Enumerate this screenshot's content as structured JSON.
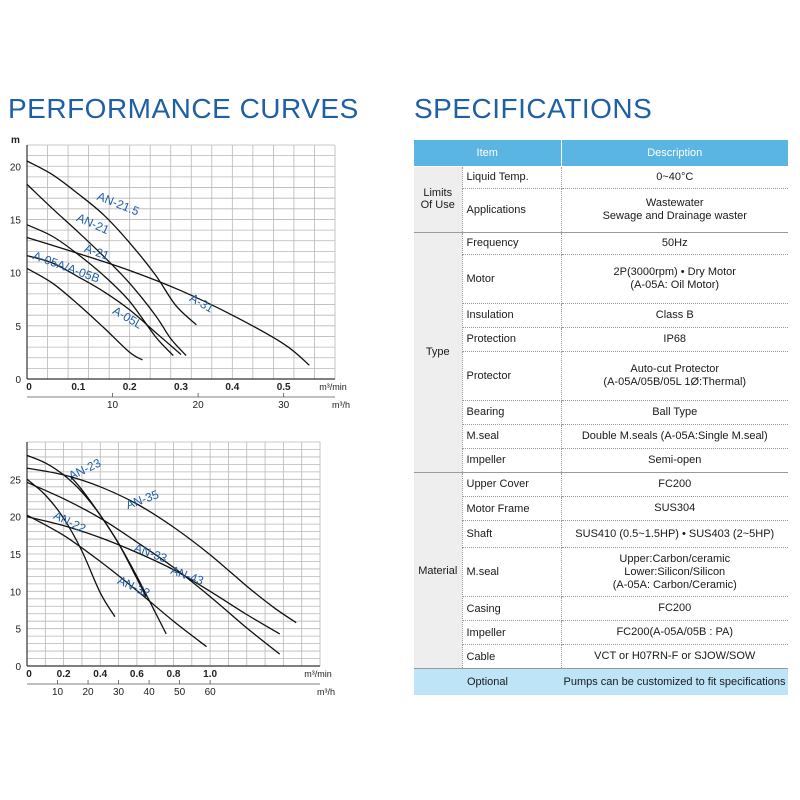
{
  "left_title": "PERFORMANCE CURVES",
  "right_title": "SPECIFICATIONS",
  "chart_data": [
    {
      "type": "line",
      "title": "",
      "ylabel": "m",
      "xlabel": "m³/min",
      "x2label": "m³/h",
      "xlim": [
        0,
        0.6
      ],
      "ylim": [
        0,
        22
      ],
      "x2lim": [
        0,
        36
      ],
      "xticks": [
        0,
        0.1,
        0.2,
        0.3,
        0.4,
        0.5
      ],
      "xtick_labels": [
        "0",
        "0.1",
        "0.2",
        "0.3",
        "0.4",
        "0.5"
      ],
      "x2ticks": [
        10,
        20,
        30
      ],
      "yticks": [
        0,
        5,
        10,
        15,
        20
      ],
      "series": [
        {
          "name": "AN-21.5",
          "label_at": [
            0.135,
            16.9
          ],
          "label_angle": 22,
          "x": [
            0,
            0.05,
            0.1,
            0.15,
            0.2,
            0.25,
            0.29,
            0.33
          ],
          "y": [
            20.5,
            19.2,
            17.4,
            15.4,
            12.8,
            9.8,
            6.9,
            5.1
          ]
        },
        {
          "name": "AN-21",
          "label_at": [
            0.095,
            14.9
          ],
          "label_angle": 24,
          "x": [
            0,
            0.05,
            0.1,
            0.15,
            0.2,
            0.25,
            0.28,
            0.31
          ],
          "y": [
            18.3,
            16.0,
            13.8,
            11.5,
            9.0,
            6.0,
            3.8,
            2.2
          ]
        },
        {
          "name": "A-21",
          "label_at": [
            0.11,
            12.0
          ],
          "label_angle": 20,
          "x": [
            0,
            0.05,
            0.1,
            0.15,
            0.2,
            0.25,
            0.285
          ],
          "y": [
            14.5,
            13.4,
            11.7,
            9.7,
            7.3,
            4.0,
            2.2
          ]
        },
        {
          "name": "A-05A/A-05B",
          "label_at": [
            0.01,
            11.3
          ],
          "label_angle": 20,
          "x": [
            0,
            0.05,
            0.1,
            0.15,
            0.2,
            0.25,
            0.3
          ],
          "y": [
            11.6,
            10.9,
            9.6,
            8.2,
            6.5,
            4.4,
            2.3
          ]
        },
        {
          "name": "A-05L",
          "label_at": [
            0.165,
            6.2
          ],
          "label_angle": 30,
          "x": [
            0,
            0.05,
            0.1,
            0.15,
            0.2,
            0.225
          ],
          "y": [
            10.4,
            9.0,
            7.0,
            4.8,
            2.5,
            1.8
          ]
        },
        {
          "name": "A-31",
          "label_at": [
            0.315,
            7.4
          ],
          "label_angle": 30,
          "x": [
            0,
            0.1,
            0.2,
            0.3,
            0.4,
            0.5,
            0.55
          ],
          "y": [
            13.3,
            11.8,
            10.2,
            8.3,
            6.0,
            3.3,
            1.3
          ]
        }
      ]
    },
    {
      "type": "line",
      "title": "",
      "ylabel": "",
      "xlabel": "m³/min",
      "x2label": "m³/h",
      "xlim": [
        0,
        1.6
      ],
      "ylim": [
        0,
        30
      ],
      "x2lim": [
        0,
        96
      ],
      "xticks": [
        0,
        0.2,
        0.4,
        0.6,
        0.8,
        1.0
      ],
      "xtick_labels": [
        "0",
        "0.2",
        "0.4",
        "0.6",
        "0.8",
        "1.0"
      ],
      "x2ticks": [
        10,
        20,
        30,
        40,
        50,
        60
      ],
      "yticks": [
        0,
        5,
        10,
        15,
        20,
        25
      ],
      "series": [
        {
          "name": "AN-23",
          "label_at": [
            0.24,
            24.9
          ],
          "label_angle": -25,
          "x": [
            0,
            0.1,
            0.2,
            0.3,
            0.4,
            0.5,
            0.6,
            0.76
          ],
          "y": [
            28.2,
            27.2,
            25.6,
            23.3,
            20.2,
            16.4,
            12.0,
            4.3
          ]
        },
        {
          "name": "AN-35",
          "label_at": [
            0.55,
            21.0
          ],
          "label_angle": -20,
          "x": [
            0,
            0.2,
            0.4,
            0.6,
            0.8,
            1.0,
            1.2,
            1.35,
            1.47
          ],
          "y": [
            26.5,
            25.6,
            24.0,
            21.7,
            18.6,
            14.9,
            10.7,
            7.8,
            5.8
          ]
        },
        {
          "name": "AN-33",
          "label_at": [
            0.58,
            15.4
          ],
          "label_angle": 20,
          "x": [
            0,
            0.2,
            0.4,
            0.6,
            0.8,
            1.0,
            1.2,
            1.38
          ],
          "y": [
            24.6,
            22.4,
            19.8,
            16.6,
            13.2,
            9.3,
            5.1,
            1.6
          ]
        },
        {
          "name": "AN-43",
          "label_at": [
            0.78,
            12.4
          ],
          "label_angle": 20,
          "x": [
            0,
            0.2,
            0.4,
            0.6,
            0.8,
            1.0,
            1.2,
            1.38
          ],
          "y": [
            20.0,
            18.8,
            17.2,
            15.2,
            12.9,
            10.0,
            6.9,
            4.3
          ]
        },
        {
          "name": "AN-22",
          "label_at": [
            0.14,
            19.8
          ],
          "label_angle": 26,
          "x": [
            0,
            0.1,
            0.2,
            0.3,
            0.4,
            0.48
          ],
          "y": [
            25.0,
            22.9,
            19.8,
            15.4,
            9.8,
            6.6
          ]
        },
        {
          "name": "AN-32",
          "label_at": [
            0.49,
            11.1
          ],
          "label_angle": 25,
          "x": [
            0,
            0.2,
            0.4,
            0.6,
            0.8,
            0.98
          ],
          "y": [
            20.2,
            17.5,
            14.0,
            10.1,
            6.0,
            2.6
          ]
        },
        {
          "name": "",
          "label_at": null,
          "label_angle": 0,
          "x": [
            0.24,
            0.3,
            0.4,
            0.5,
            0.6,
            0.65
          ],
          "y": [
            25.3,
            23.6,
            20.2,
            16.4,
            11.7,
            9.3
          ]
        }
      ]
    }
  ],
  "spec": {
    "headers": {
      "item": "Item",
      "description": "Description"
    },
    "groups": [
      {
        "category": "Limits\nOf  Use",
        "rows": [
          {
            "item": "Liquid Temp.",
            "desc": "0~40°C",
            "h": 22
          },
          {
            "item": "Applications",
            "desc": "Wastewater\nSewage  and  Drainage  waster",
            "h": 44
          }
        ]
      },
      {
        "category": "Type",
        "rows": [
          {
            "item": "Frequency",
            "desc": "50Hz",
            "h": 22
          },
          {
            "item": "Motor",
            "desc": "2P(3000rpm) • Dry Motor\n(A-05A: Oil Motor)",
            "h": 49
          },
          {
            "item": "Insulation",
            "desc": "Class B",
            "h": 24
          },
          {
            "item": "Protection",
            "desc": "IP68",
            "h": 24
          },
          {
            "item": "Protector",
            "desc": "Auto-cut Protector\n(A-05A/05B/05L 1Ø:Thermal)",
            "h": 49
          },
          {
            "item": "Bearing",
            "desc": "Ball Type",
            "h": 24
          },
          {
            "item": "M.seal",
            "desc": "Double M.seals (A-05A:Single M.seal)",
            "h": 24
          },
          {
            "item": "Impeller",
            "desc": "Semi-open",
            "h": 24
          }
        ]
      },
      {
        "category": "Material",
        "rows": [
          {
            "item": "Upper Cover",
            "desc": "FC200",
            "h": 24
          },
          {
            "item": "Motor Frame",
            "desc": "SUS304",
            "h": 24
          },
          {
            "item": "Shaft",
            "desc": "SUS410 (0.5~1.5HP) • SUS403 (2~5HP)",
            "h": 27
          },
          {
            "item": "M.seal",
            "desc": "Upper:Carbon/ceramic\nLower:Silicon/Silicon\n(A-05A: Carbon/Ceramic)",
            "h": 49
          },
          {
            "item": "Casing",
            "desc": "FC200",
            "h": 24
          },
          {
            "item": "Impeller",
            "desc": "FC200(A-05A/05B : PA)",
            "h": 24
          },
          {
            "item": "Cable",
            "desc": "VCT or H07RN-F or SJOW/SOW",
            "h": 24
          }
        ]
      }
    ],
    "optional": {
      "label": "Optional",
      "desc": "Pumps can be customized to fit specifications"
    }
  }
}
